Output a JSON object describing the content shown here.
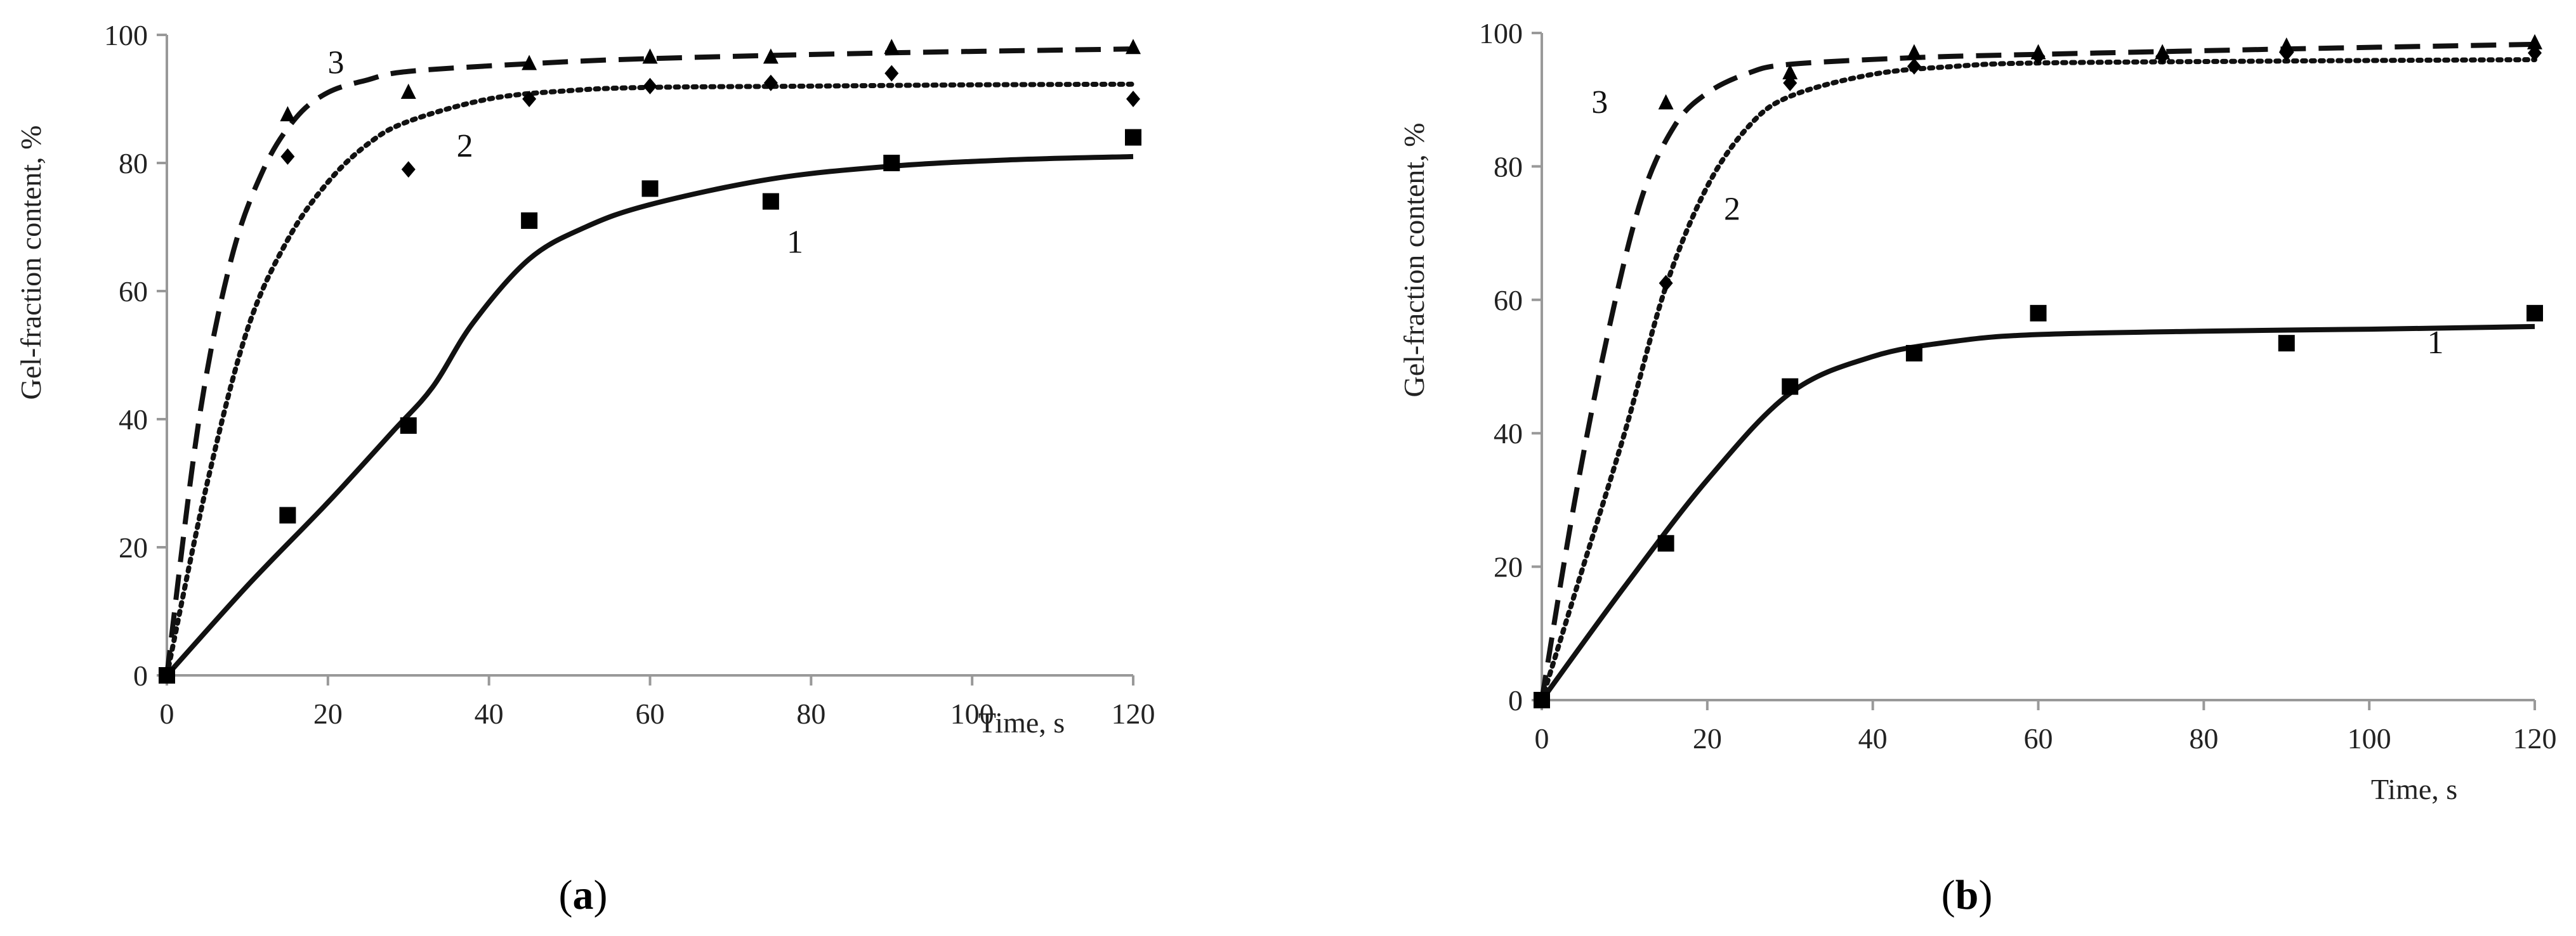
{
  "chart_data": [
    {
      "type": "scatter",
      "panel": "a",
      "panel_open": "(",
      "panel_letter": "a",
      "panel_close": ")",
      "xlabel": "Time, s",
      "ylabel": "Gel-fraction content, %",
      "xlim": [
        0,
        120
      ],
      "ylim": [
        0,
        100
      ],
      "xticks": [
        0,
        20,
        40,
        60,
        80,
        100,
        120
      ],
      "yticks": [
        0,
        20,
        40,
        60,
        80,
        100
      ],
      "series": [
        {
          "name": "1",
          "marker": "square",
          "line_style": "solid",
          "points": [
            [
              0,
              0
            ],
            [
              15,
              25
            ],
            [
              30,
              39
            ],
            [
              45,
              71
            ],
            [
              60,
              76
            ],
            [
              75,
              74
            ],
            [
              90,
              80
            ],
            [
              120,
              84
            ]
          ],
          "fit": [
            [
              0,
              0
            ],
            [
              10,
              14
            ],
            [
              20,
              27
            ],
            [
              28,
              38
            ],
            [
              33,
              45
            ],
            [
              38,
              55
            ],
            [
              45,
              65
            ],
            [
              52,
              70
            ],
            [
              60,
              73.5
            ],
            [
              75,
              77.5
            ],
            [
              90,
              79.5
            ],
            [
              105,
              80.5
            ],
            [
              120,
              81
            ]
          ],
          "label_at": [
            78,
            66
          ]
        },
        {
          "name": "2",
          "marker": "diamond",
          "line_style": "dotted",
          "points": [
            [
              0,
              0
            ],
            [
              15,
              81
            ],
            [
              30,
              79
            ],
            [
              45,
              90
            ],
            [
              60,
              92
            ],
            [
              75,
              92.5
            ],
            [
              90,
              94
            ],
            [
              120,
              90
            ]
          ],
          "fit": [
            [
              0,
              0
            ],
            [
              5,
              30
            ],
            [
              10,
              54
            ],
            [
              15,
              68
            ],
            [
              20,
              77
            ],
            [
              25,
              83
            ],
            [
              30,
              86.5
            ],
            [
              40,
              90
            ],
            [
              50,
              91.3
            ],
            [
              60,
              91.8
            ],
            [
              80,
              92
            ],
            [
              100,
              92.2
            ],
            [
              120,
              92.3
            ]
          ],
          "label_at": [
            37,
            81
          ]
        },
        {
          "name": "3",
          "marker": "triangle",
          "line_style": "dashed",
          "points": [
            [
              0,
              0
            ],
            [
              15,
              87.5
            ],
            [
              30,
              91
            ],
            [
              45,
              95.5
            ],
            [
              60,
              96.5
            ],
            [
              75,
              96.5
            ],
            [
              90,
              98
            ],
            [
              120,
              98
            ]
          ],
          "fit": [
            [
              0,
              0
            ],
            [
              4,
              40
            ],
            [
              8,
              65
            ],
            [
              12,
              79
            ],
            [
              16,
              87
            ],
            [
              20,
              91
            ],
            [
              25,
              93
            ],
            [
              30,
              94.3
            ],
            [
              45,
              95.5
            ],
            [
              60,
              96.3
            ],
            [
              90,
              97.2
            ],
            [
              120,
              97.8
            ]
          ],
          "label_at": [
            21,
            94
          ]
        }
      ]
    },
    {
      "type": "scatter",
      "panel": "b",
      "panel_open": "(",
      "panel_letter": "b",
      "panel_close": ")",
      "xlabel": "Time, s",
      "ylabel": "Gel-fraction content, %",
      "xlim": [
        0,
        120
      ],
      "ylim": [
        0,
        100
      ],
      "xticks": [
        0,
        20,
        40,
        60,
        80,
        100,
        120
      ],
      "yticks": [
        0,
        20,
        40,
        60,
        80,
        100
      ],
      "series": [
        {
          "name": "1",
          "marker": "square",
          "line_style": "solid",
          "points": [
            [
              0,
              0
            ],
            [
              15,
              23.5
            ],
            [
              30,
              47
            ],
            [
              45,
              52
            ],
            [
              60,
              58
            ],
            [
              90,
              53.5
            ],
            [
              120,
              58
            ]
          ],
          "fit": [
            [
              0,
              0
            ],
            [
              10,
              17
            ],
            [
              20,
              33
            ],
            [
              30,
              46
            ],
            [
              40,
              51.5
            ],
            [
              50,
              53.8
            ],
            [
              60,
              54.8
            ],
            [
              80,
              55.3
            ],
            [
              100,
              55.6
            ],
            [
              120,
              56
            ]
          ],
          "label_at": [
            108,
            52
          ]
        },
        {
          "name": "2",
          "marker": "diamond",
          "line_style": "dotted",
          "points": [
            [
              0,
              0
            ],
            [
              15,
              62.5
            ],
            [
              30,
              92.5
            ],
            [
              45,
              95
            ],
            [
              60,
              96.5
            ],
            [
              75,
              96.5
            ],
            [
              90,
              97
            ],
            [
              120,
              97
            ]
          ],
          "fit": [
            [
              0,
              0
            ],
            [
              5,
              20
            ],
            [
              10,
              40
            ],
            [
              15,
              62
            ],
            [
              20,
              77
            ],
            [
              25,
              86
            ],
            [
              30,
              90.5
            ],
            [
              40,
              93.8
            ],
            [
              50,
              95
            ],
            [
              60,
              95.5
            ],
            [
              90,
              95.8
            ],
            [
              120,
              96
            ]
          ],
          "label_at": [
            23,
            72
          ]
        },
        {
          "name": "3",
          "marker": "triangle",
          "line_style": "dashed",
          "points": [
            [
              0,
              0
            ],
            [
              15,
              89.5
            ],
            [
              30,
              94
            ],
            [
              45,
              97
            ],
            [
              60,
              97
            ],
            [
              75,
              97
            ],
            [
              90,
              98
            ],
            [
              120,
              98.5
            ]
          ],
          "fit": [
            [
              0,
              0
            ],
            [
              4,
              30
            ],
            [
              8,
              55
            ],
            [
              12,
              75
            ],
            [
              16,
              86
            ],
            [
              20,
              91
            ],
            [
              25,
              94
            ],
            [
              30,
              95.3
            ],
            [
              45,
              96.3
            ],
            [
              60,
              96.8
            ],
            [
              90,
              97.6
            ],
            [
              120,
              98.3
            ]
          ],
          "label_at": [
            7,
            88
          ]
        }
      ]
    }
  ]
}
